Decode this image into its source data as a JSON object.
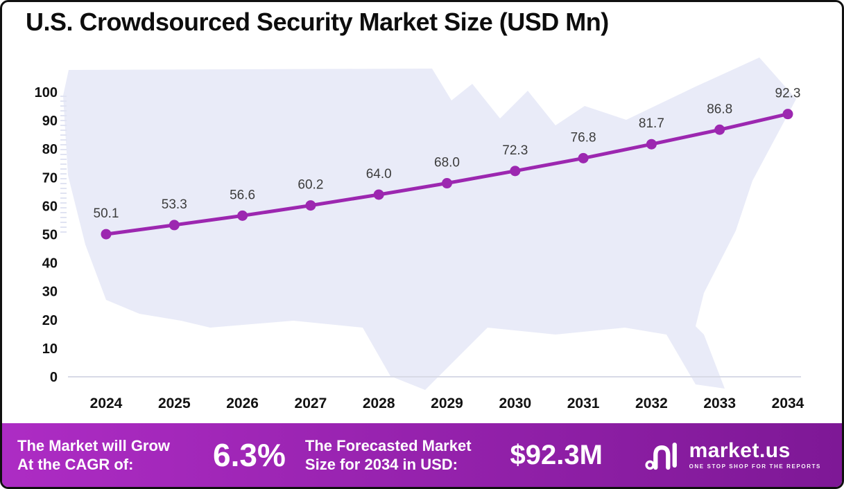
{
  "chart_data": {
    "type": "line",
    "title": "U.S. Crowdsourced Security Market Size (USD Mn)",
    "categories": [
      "2024",
      "2025",
      "2026",
      "2027",
      "2028",
      "2029",
      "2030",
      "2031",
      "2032",
      "2033",
      "2034"
    ],
    "values": [
      50.1,
      53.3,
      56.6,
      60.2,
      64.0,
      68.0,
      72.3,
      76.8,
      81.7,
      86.8,
      92.3
    ],
    "data_labels": [
      "50.1",
      "53.3",
      "56.6",
      "60.2",
      "64.0",
      "68.0",
      "72.3",
      "76.8",
      "81.7",
      "86.8",
      "92.3"
    ],
    "xlabel": "",
    "ylabel": "",
    "ylim": [
      0,
      100
    ],
    "yticks": [
      0,
      10,
      20,
      30,
      40,
      50,
      60,
      70,
      80,
      90,
      100
    ],
    "grid": false,
    "legend": "none"
  },
  "footer": {
    "cagr_label_line1": "The Market will Grow",
    "cagr_label_line2": "At the CAGR of:",
    "cagr_value": "6.3%",
    "forecast_label_line1": "The Forecasted Market",
    "forecast_label_line2": "Size for 2034 in USD:",
    "forecast_value": "$92.3M",
    "brand_name": "market.us",
    "brand_tagline": "ONE STOP SHOP FOR THE REPORTS"
  },
  "colors": {
    "line": "#9c27b0",
    "marker": "#9c27b0",
    "map_fill": "#e9ebf8",
    "axis_text": "#111111",
    "data_label_text": "#3c3c3c",
    "baseline": "#d8dae6",
    "footer_gradient_from": "#ad2cc4",
    "footer_gradient_to": "#7e1896"
  }
}
